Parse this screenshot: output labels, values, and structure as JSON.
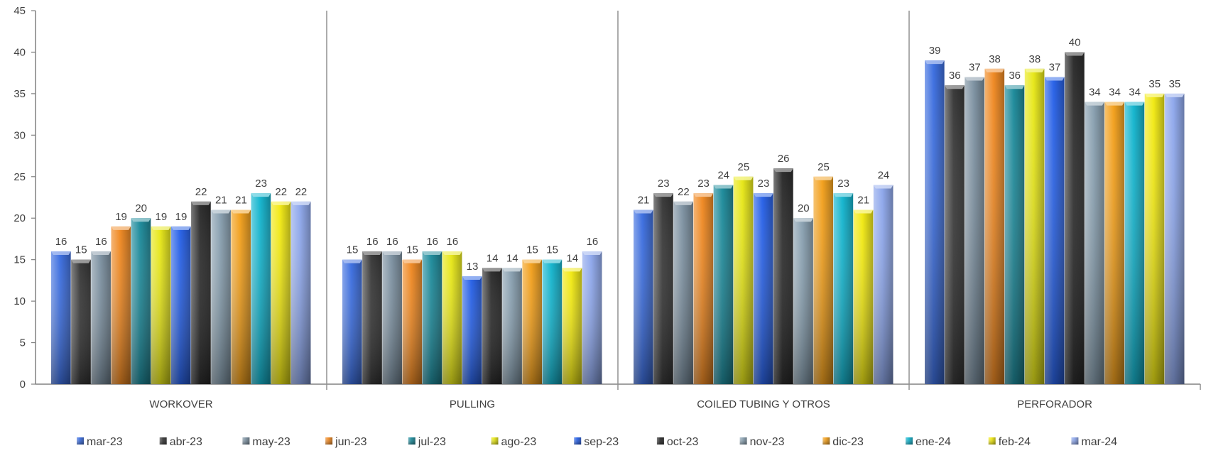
{
  "chart_data": {
    "type": "bar",
    "title": "",
    "xlabel": "",
    "ylabel": "",
    "ylim": [
      0,
      45
    ],
    "yticks": [
      0,
      5,
      10,
      15,
      20,
      25,
      30,
      35,
      40,
      45
    ],
    "grid": false,
    "legend_position": "bottom",
    "categories": [
      "WORKOVER",
      "PULLING",
      "COILED TUBING Y OTROS",
      "PERFORADOR"
    ],
    "series": [
      {
        "name": "mar-23",
        "color": "#3d6fe0",
        "values": [
          16,
          15,
          21,
          39
        ]
      },
      {
        "name": "abr-23",
        "color": "#3a3a3a",
        "values": [
          15,
          16,
          23,
          36
        ]
      },
      {
        "name": "may-23",
        "color": "#7f93a3",
        "values": [
          16,
          16,
          22,
          37
        ]
      },
      {
        "name": "jun-23",
        "color": "#f08a24",
        "values": [
          19,
          15,
          23,
          38
        ]
      },
      {
        "name": "jul-23",
        "color": "#1f8c9c",
        "values": [
          20,
          16,
          24,
          36
        ]
      },
      {
        "name": "ago-23",
        "color": "#e8e81a",
        "values": [
          19,
          16,
          25,
          38
        ]
      },
      {
        "name": "sep-23",
        "color": "#2a63e8",
        "values": [
          19,
          13,
          23,
          37
        ]
      },
      {
        "name": "oct-23",
        "color": "#2e2e2e",
        "values": [
          22,
          14,
          26,
          40
        ]
      },
      {
        "name": "nov-23",
        "color": "#8aa1b1",
        "values": [
          21,
          14,
          20,
          34
        ]
      },
      {
        "name": "dic-23",
        "color": "#f3a11e",
        "values": [
          21,
          15,
          25,
          34
        ]
      },
      {
        "name": "ene-24",
        "color": "#16b6cf",
        "values": [
          23,
          15,
          23,
          34
        ]
      },
      {
        "name": "feb-24",
        "color": "#f2ea15",
        "values": [
          22,
          14,
          21,
          35
        ]
      },
      {
        "name": "mar-24",
        "color": "#8fa8ec",
        "values": [
          22,
          16,
          24,
          35
        ]
      }
    ]
  }
}
